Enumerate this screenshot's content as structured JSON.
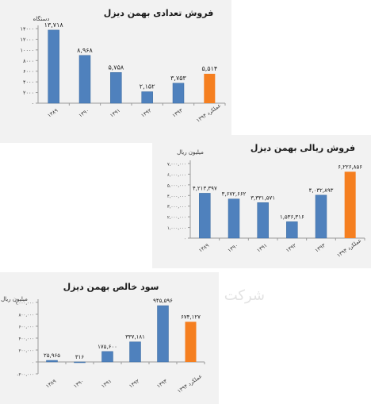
{
  "watermark": "( شرکت",
  "colors": {
    "bar": "#4f81bd",
    "bar_highlight": "#f57f20",
    "axis": "#9a9a9a",
    "panel_bg": "#f2f2f2"
  },
  "chart_data": [
    {
      "type": "bar",
      "title": "فروش تعدادی بهمن دیزل",
      "ylabel": "دستگاه",
      "xlabel": "",
      "categories": [
        "۱۳۸۹",
        "۱۳۹۰",
        "۱۳۹۱",
        "۱۳۹۲",
        "۱۳۹۳",
        "عملکرد ۱۳۹۴"
      ],
      "values": [
        13718,
        8968,
        5758,
        2152,
        3753,
        5514
      ],
      "data_labels": [
        "۱۳,۷۱۸",
        "۸,۹۶۸",
        "۵,۷۵۸",
        "۲,۱۵۲",
        "۳,۷۵۳",
        "۵,۵۱۴"
      ],
      "highlight_index": 5,
      "ylim": [
        0,
        14000
      ],
      "yticks": [
        0,
        2000,
        4000,
        6000,
        8000,
        10000,
        12000,
        14000
      ],
      "ytick_labels": [
        "۰",
        "۲۰۰۰",
        "۴۰۰۰",
        "۶۰۰۰",
        "۸۰۰۰",
        "۱۰۰۰۰",
        "۱۲۰۰۰",
        "۱۴۰۰۰"
      ],
      "grid": false,
      "legend": "none"
    },
    {
      "type": "bar",
      "title": "فروش ریالی بهمن دیزل",
      "ylabel": "میلیون ریال",
      "xlabel": "",
      "categories": [
        "۱۳۸۹",
        "۱۳۹۰",
        "۱۳۹۱",
        "۱۳۹۲",
        "۱۳۹۳",
        "عملکرد ۱۳۹۴"
      ],
      "values": [
        4213397,
        3672662,
        3331571,
        1536316,
        4032893,
        6226856
      ],
      "data_labels": [
        "۴,۲۱۳,۳۹۷",
        "۳,۶۷۲,۶۶۲",
        "۳,۳۳۱,۵۷۱",
        "۱,۵۳۶,۳۱۶",
        "۴,۰۳۲,۸۹۳",
        "۶,۲۲۶,۸۵۶"
      ],
      "highlight_index": 5,
      "ylim": [
        0,
        7000000
      ],
      "yticks": [
        0,
        1000000,
        2000000,
        3000000,
        4000000,
        5000000,
        6000000,
        7000000
      ],
      "ytick_labels": [
        "۰",
        "۱,۰۰۰,۰۰۰",
        "۲,۰۰۰,۰۰۰",
        "۳,۰۰۰,۰۰۰",
        "۴,۰۰۰,۰۰۰",
        "۵,۰۰۰,۰۰۰",
        "۶,۰۰۰,۰۰۰",
        "۷,۰۰۰,۰۰۰"
      ],
      "grid": false,
      "legend": "none"
    },
    {
      "type": "bar",
      "title": "سود خالص بهمن دیزل",
      "ylabel": "میلیون ریال",
      "xlabel": "",
      "categories": [
        "۱۳۸۹",
        "۱۳۹۰",
        "۱۳۹۱",
        "۱۳۹۲",
        "۱۳۹۳",
        "عملکرد ۱۳۹۴"
      ],
      "values": [
        25965,
        316,
        175600,
        337181,
        945596,
        674127
      ],
      "data_labels": [
        "۲۵,۹۶۵",
        "۳۱۶",
        "۱۷۵,۶۰۰",
        "۳۳۷,۱۸۱",
        "۹۴۵,۵۹۶",
        "۶۷۴,۱۲۷"
      ],
      "highlight_index": 5,
      "ylim": [
        -200000,
        1000000
      ],
      "yticks": [
        -200000,
        0,
        200000,
        400000,
        600000,
        800000,
        1000000
      ],
      "ytick_labels": [
        "-۲۰۰,۰۰۰",
        "۰",
        "۲۰۰,۰۰۰",
        "۴۰۰,۰۰۰",
        "۶۰۰,۰۰۰",
        "۸۰۰,۰۰۰",
        "۱,۰۰۰,۰۰۰"
      ],
      "grid": false,
      "legend": "none"
    }
  ]
}
